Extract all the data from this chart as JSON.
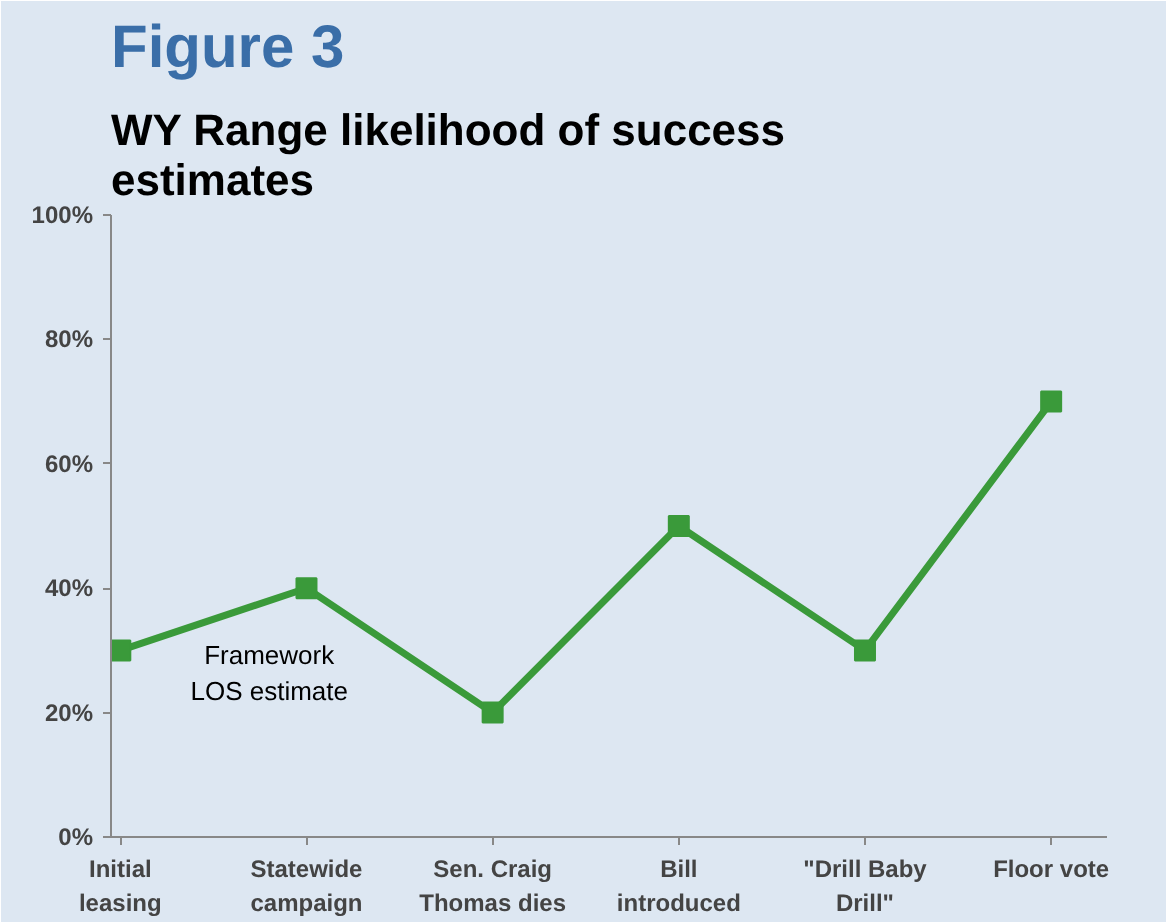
{
  "chart_data": {
    "type": "line",
    "title": "Figure 3",
    "subtitle": "WY Range likelihood of success\nestimates",
    "categories": [
      "Initial\nleasing",
      "Statewide\ncampaign",
      "Sen. Craig\nThomas dies",
      "Bill\nintroduced",
      "\"Drill Baby\nDrill\"",
      "Floor vote"
    ],
    "series": [
      {
        "color": "#3a9a3a",
        "values": [
          30,
          40,
          20,
          50,
          30,
          70
        ]
      }
    ],
    "ylim": [
      0,
      100
    ],
    "yticks": [
      {
        "value": 0,
        "label": "0%"
      },
      {
        "value": 20,
        "label": "20%"
      },
      {
        "value": 40,
        "label": "40%"
      },
      {
        "value": 60,
        "label": "60%"
      },
      {
        "value": 80,
        "label": "80%"
      },
      {
        "value": 100,
        "label": "100%"
      }
    ],
    "marker": "square",
    "grid": false,
    "annotations": [
      "Framework\nLOS estimate"
    ]
  }
}
